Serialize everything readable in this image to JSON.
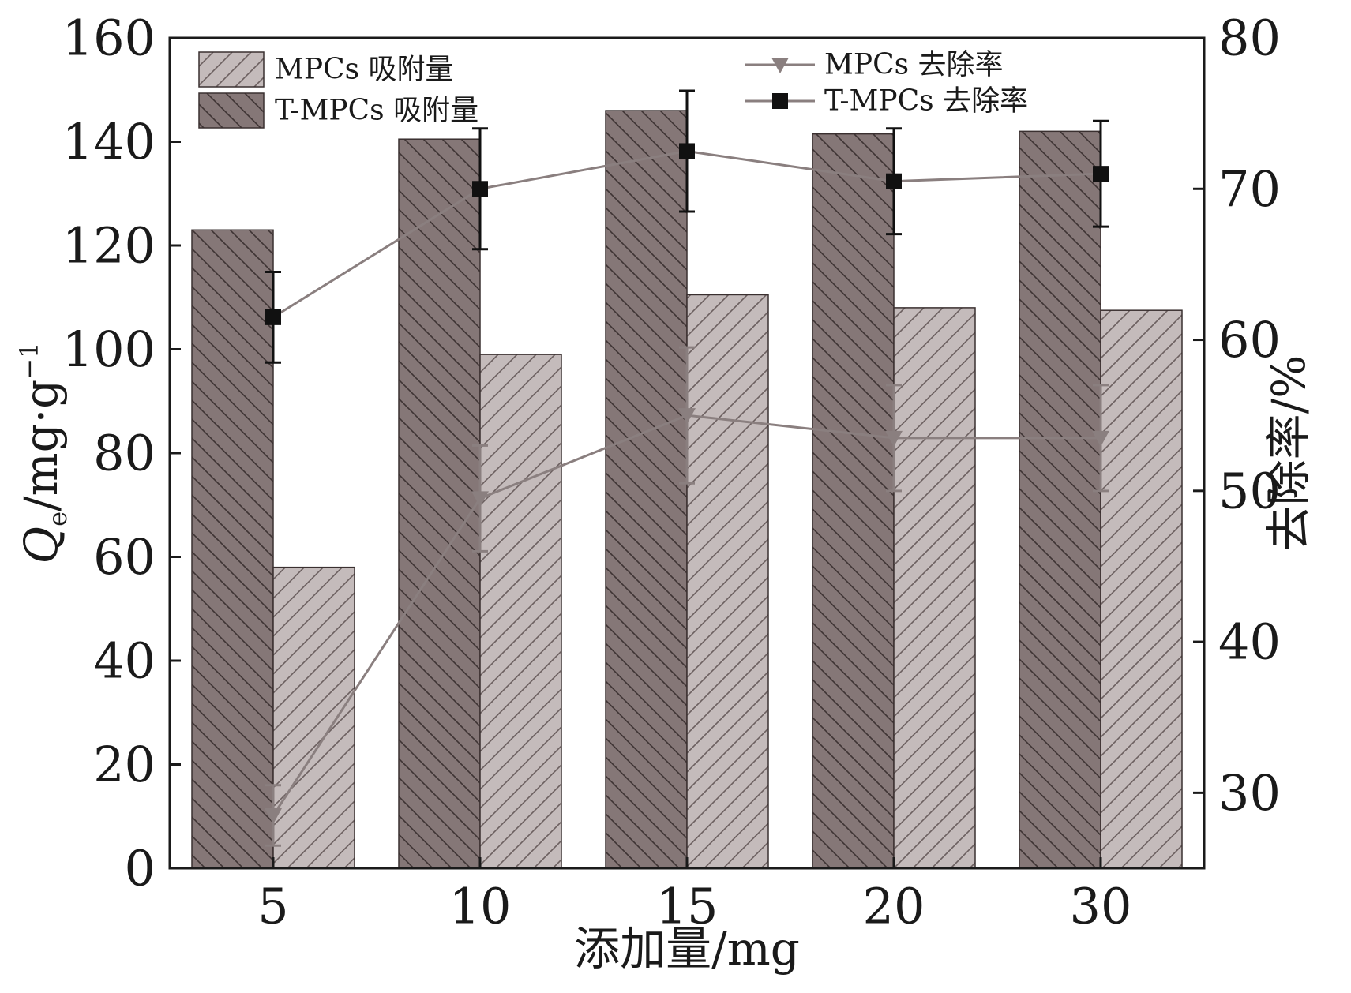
{
  "chart_data": {
    "type": "bar",
    "categories": [
      "5",
      "10",
      "15",
      "20",
      "30"
    ],
    "xlabel": "添加量/mg",
    "ylabel_left": {
      "symbol": "Q",
      "subscript": "e",
      "unit": "/mg·g",
      "superscript": "−1"
    },
    "ylabel_right": "去除率/%",
    "ylim_left": [
      0,
      160
    ],
    "ylim_right": [
      25,
      80
    ],
    "yticks_left": [
      "0",
      "20",
      "40",
      "60",
      "80",
      "100",
      "120",
      "140",
      "160"
    ],
    "yticks_right": [
      "30",
      "40",
      "50",
      "60",
      "70",
      "80"
    ],
    "bar_series": [
      {
        "name": "T-MPCs 吸附量",
        "values": [
          123,
          140.5,
          146,
          141.5,
          142
        ],
        "color": "#857777"
      },
      {
        "name": "MPCs 吸附量",
        "values": [
          58,
          99,
          110.5,
          108,
          107.5
        ],
        "color": "#c4bbbb"
      }
    ],
    "line_series": [
      {
        "name": "MPCs 去除率",
        "marker": "triangle-down",
        "values": [
          28.5,
          49.5,
          55,
          53.5,
          53.5
        ],
        "errors": [
          2,
          3.5,
          4.5,
          3.5,
          3.5
        ],
        "color": "#8a7f7f"
      },
      {
        "name": "T-MPCs 去除率",
        "marker": "square",
        "values": [
          61.5,
          70,
          72.5,
          70.5,
          71
        ],
        "errors": [
          3,
          4,
          4,
          3.5,
          3.5
        ],
        "color": "#111111"
      }
    ],
    "legend_placement": "top"
  }
}
